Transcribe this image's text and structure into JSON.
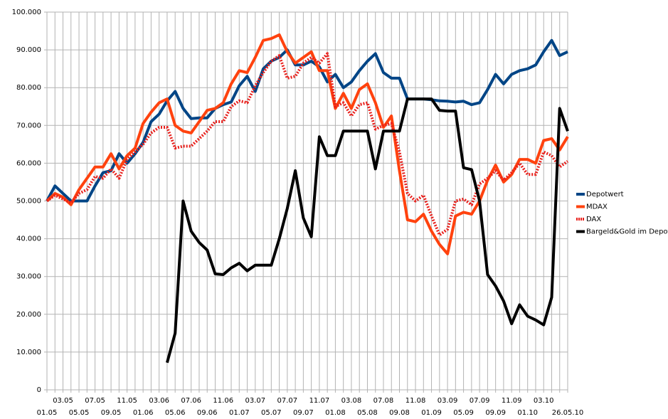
{
  "chart_data": {
    "type": "line",
    "categories": [
      "01.05",
      null,
      "03.05",
      null,
      "05.05",
      null,
      "07.05",
      null,
      "09.05",
      null,
      "11.05",
      null,
      "01.06",
      null,
      "03.06",
      null,
      "05.06",
      null,
      "07.06",
      null,
      "09.06",
      null,
      "11.06",
      null,
      "01.07",
      null,
      "03.07",
      null,
      "05.07",
      null,
      "07.07",
      null,
      "09.07",
      null,
      "11.07",
      null,
      "01.08",
      null,
      "03.08",
      null,
      "05.08",
      null,
      "07.08",
      null,
      "09.08",
      null,
      "11.08",
      null,
      "01.09",
      null,
      "03.09",
      null,
      "05.09",
      null,
      "07.09",
      null,
      "09.09",
      null,
      "11.09",
      null,
      "01.10",
      null,
      "03.10",
      null,
      null,
      "26.05.10"
    ],
    "series": [
      {
        "name": "Depotwert",
        "color": "#004586",
        "dotted": false,
        "values": [
          50000,
          54000,
          52000,
          50000,
          50000,
          50000,
          54000,
          57500,
          58000,
          62500,
          60000,
          62500,
          65500,
          71000,
          73000,
          76500,
          79000,
          74500,
          71800,
          72000,
          72000,
          74500,
          75500,
          76200,
          80500,
          83000,
          79000,
          85000,
          87000,
          88000,
          90000,
          86000,
          86000,
          87000,
          85500,
          81500,
          83500,
          80000,
          81500,
          84500,
          87000,
          89000,
          84000,
          82500,
          82500,
          77000,
          77000,
          77000,
          76800,
          76500,
          76400,
          76200,
          76400,
          75500,
          76000,
          79500,
          83500,
          81000,
          83500,
          84500,
          85000,
          86000,
          89500,
          92500,
          88500,
          89500
        ]
      },
      {
        "name": "MDAX",
        "color": "#ff420e",
        "dotted": false,
        "values": [
          50000,
          52000,
          51000,
          49000,
          53000,
          56000,
          59000,
          59000,
          62500,
          58500,
          62000,
          64000,
          70500,
          73500,
          76000,
          77000,
          70000,
          68500,
          68000,
          71000,
          74000,
          74500,
          76000,
          81000,
          84500,
          84000,
          88000,
          92500,
          93000,
          94000,
          89500,
          86500,
          88000,
          89500,
          84500,
          84500,
          74500,
          78500,
          74500,
          79500,
          81000,
          76000,
          69500,
          72500,
          58000,
          45000,
          44500,
          46500,
          42000,
          38500,
          36000,
          46000,
          47000,
          46500,
          50000,
          55500,
          59500,
          55000,
          57000,
          61000,
          61000,
          60000,
          66000,
          66500,
          63500,
          67000
        ]
      },
      {
        "name": "DAX",
        "color": "#e8201c",
        "dotted": true,
        "values": [
          50000,
          51500,
          50500,
          49500,
          52000,
          53000,
          56500,
          56000,
          58500,
          56000,
          61000,
          63000,
          65000,
          68000,
          69500,
          69500,
          64000,
          64500,
          64500,
          66500,
          68500,
          71000,
          71000,
          75000,
          76500,
          76000,
          80500,
          84000,
          87000,
          88500,
          82500,
          83000,
          86500,
          88000,
          86500,
          89000,
          75000,
          76000,
          72500,
          75500,
          76000,
          69000,
          70000,
          70500,
          63000,
          52000,
          50000,
          51500,
          46000,
          41000,
          42500,
          50000,
          50500,
          49000,
          54500,
          56000,
          58000,
          55500,
          57500,
          60000,
          57000,
          57000,
          63000,
          62000,
          59000,
          60500
        ]
      },
      {
        "name": "Bargeld&Gold im Depot",
        "color": "#000000",
        "dotted": false,
        "values": [
          null,
          null,
          null,
          null,
          null,
          null,
          null,
          null,
          null,
          null,
          null,
          null,
          null,
          null,
          null,
          7200,
          15000,
          50000,
          42000,
          39000,
          37000,
          30700,
          30500,
          32300,
          33500,
          31500,
          33000,
          33000,
          33000,
          40000,
          48000,
          58000,
          45500,
          40500,
          67000,
          62000,
          62000,
          68500,
          68500,
          68500,
          68500,
          58500,
          68500,
          68500,
          68500,
          77000,
          77000,
          77000,
          77000,
          74000,
          73800,
          73800,
          58800,
          58300,
          50000,
          30500,
          27500,
          23500,
          17500,
          22500,
          19500,
          18500,
          17200,
          24500,
          74500,
          68500
        ]
      }
    ],
    "ylim": [
      0,
      100000
    ],
    "yticks": [
      0,
      {
        "value": 10000,
        "label": "10.000"
      },
      {
        "value": 20000,
        "label": "20.000"
      },
      {
        "value": 30000,
        "label": "30.000"
      },
      {
        "value": 40000,
        "label": "40.000"
      },
      {
        "value": 50000,
        "label": "50.000"
      },
      {
        "value": 60000,
        "label": "60.000"
      },
      {
        "value": 70000,
        "label": "70.000"
      },
      {
        "value": 80000,
        "label": "80.000"
      },
      {
        "value": 90000,
        "label": "90.000"
      },
      {
        "value": 100000,
        "label": "100.000"
      }
    ],
    "grid": true,
    "legend": "right"
  }
}
